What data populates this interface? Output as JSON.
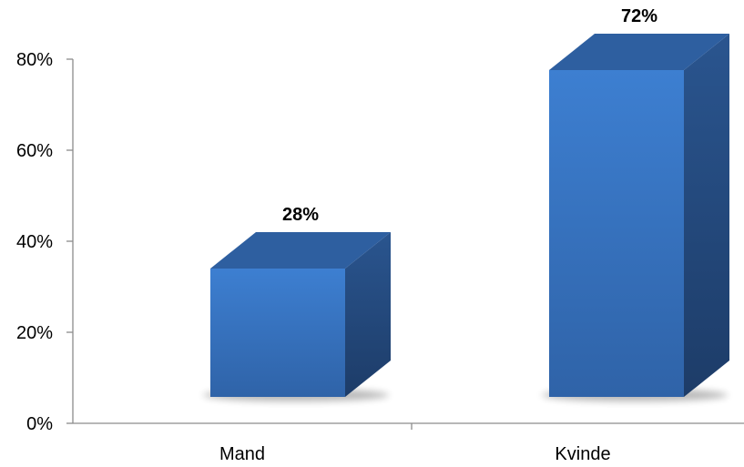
{
  "chart_data": {
    "type": "bar",
    "style": "3d-column",
    "categories": [
      "Mand",
      "Kvinde"
    ],
    "values": [
      0.28,
      0.72
    ],
    "data_labels": [
      "28%",
      "72%"
    ],
    "y_ticks": [
      {
        "value": 0,
        "label": "0%"
      },
      {
        "value": 0.2,
        "label": "20%"
      },
      {
        "value": 0.4,
        "label": "40%"
      },
      {
        "value": 0.6,
        "label": "60%"
      },
      {
        "value": 0.8,
        "label": "80%"
      }
    ],
    "ylim": [
      0,
      0.8
    ],
    "grid": false,
    "legend": "none",
    "title": "",
    "xlabel": "",
    "ylabel": "",
    "colors": {
      "front_light": "#3d7fd1",
      "front_dark": "#2f63a8",
      "top": "#2e5fa0",
      "side_light": "#2a558f",
      "side_dark": "#1d3c68",
      "axis": "#8c8c8c",
      "shadow": "#000000"
    }
  }
}
